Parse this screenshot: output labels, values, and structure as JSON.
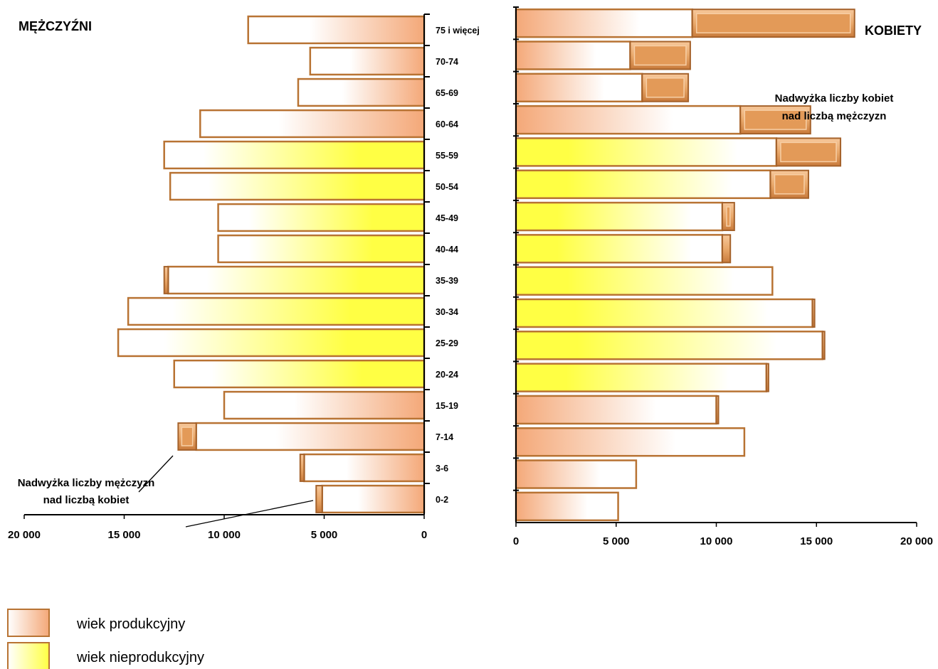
{
  "chart_data": {
    "type": "bar",
    "subtype": "population-pyramid",
    "categories": [
      "75 i więcej",
      "70-74",
      "65-69",
      "60-64",
      "55-59",
      "50-54",
      "45-49",
      "40-44",
      "35-39",
      "30-34",
      "25-29",
      "20-24",
      "15-19",
      "7-14",
      "3-6",
      "0-2"
    ],
    "left_panel_label": "MĘŻCZYŹNI",
    "right_panel_label": "KOBIETY",
    "series": [
      {
        "name": "MĘŻCZYŹNI",
        "values": [
          8800,
          5700,
          6300,
          11200,
          13000,
          12700,
          10300,
          10300,
          13000,
          14800,
          15300,
          12500,
          10000,
          12300,
          6200,
          5400
        ],
        "age_group": [
          "wiek nieprodukcyjny",
          "wiek nieprodukcyjny",
          "wiek nieprodukcyjny",
          "wiek nieprodukcyjny",
          "wiek produkcyjny",
          "wiek produkcyjny",
          "wiek produkcyjny",
          "wiek produkcyjny",
          "wiek produkcyjny",
          "wiek produkcyjny",
          "wiek produkcyjny",
          "wiek produkcyjny",
          "wiek nieprodukcyjny",
          "wiek nieprodukcyjny",
          "wiek nieprodukcyjny",
          "wiek nieprodukcyjny"
        ]
      },
      {
        "name": "KOBIETY",
        "values": [
          16900,
          8700,
          8600,
          14700,
          16200,
          14600,
          10900,
          10700,
          12800,
          14900,
          15400,
          12600,
          10100,
          11400,
          6000,
          5100
        ],
        "age_group": [
          "wiek nieprodukcyjny",
          "wiek nieprodukcyjny",
          "wiek nieprodukcyjny",
          "wiek nieprodukcyjny",
          "wiek produkcyjny",
          "wiek produkcyjny",
          "wiek produkcyjny",
          "wiek produkcyjny",
          "wiek produkcyjny",
          "wiek produkcyjny",
          "wiek produkcyjny",
          "wiek produkcyjny",
          "wiek nieprodukcyjny",
          "wiek nieprodukcyjny",
          "wiek nieprodukcyjny",
          "wiek nieprodukcyjny"
        ]
      }
    ],
    "male_x_ticks": [
      "20 000",
      "15 000",
      "10 000",
      "5 000",
      "0"
    ],
    "female_x_ticks": [
      "0",
      "5 000",
      "10 000",
      "15 000",
      "20 000"
    ],
    "xlim": [
      0,
      20000
    ],
    "legend": [
      {
        "label": "wiek produkcyjny",
        "color_from": "#ffffff",
        "color_to": "#f4a878"
      },
      {
        "label": "wiek nieprodukcyjny",
        "color_from": "#ffffff",
        "color_to": "#ffff44"
      }
    ],
    "annotations": {
      "female_surplus": [
        "Nadwyżka liczby kobiet",
        "nad liczbą mężczyzn"
      ],
      "male_surplus": [
        "Nadwyżka liczby mężczyzn",
        "nad liczbą kobiet"
      ]
    },
    "colors": {
      "border": "#b87333",
      "surplus": "#e9a86a",
      "production": "#f4a878",
      "nonproduction": "#ffff44"
    },
    "grid": false,
    "legend_position": "bottom-left"
  }
}
